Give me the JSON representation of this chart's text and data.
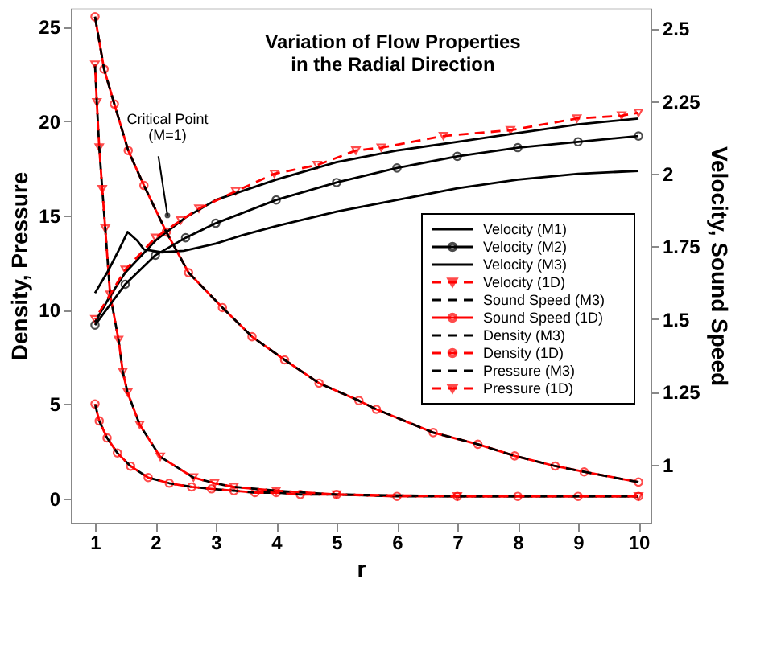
{
  "chart_data": {
    "type": "line",
    "title": "Variation of Flow Properties\nin the Radial Direction",
    "xlabel": "r",
    "ylabel": "Density, Pressure",
    "y2label": "Velocity, Sound Speed",
    "xlim": [
      0.6,
      10.2
    ],
    "xticks": [
      1,
      2,
      3,
      4,
      5,
      6,
      7,
      8,
      9,
      10
    ],
    "ylim": [
      -1.3,
      26
    ],
    "yticks": [
      0,
      5,
      10,
      15,
      20,
      25
    ],
    "y2lim": [
      0.8,
      2.57
    ],
    "y2ticks": [
      1,
      1.25,
      1.5,
      1.75,
      2,
      2.25,
      2.5
    ],
    "grid": false,
    "legend": "right",
    "annotations": [
      {
        "text": "Critical Point\n(M=1)",
        "x": 2.2,
        "y": 15
      }
    ],
    "series": [
      {
        "name": "Velocity (M1)",
        "color": "#000000",
        "axis": "y2",
        "line_style": "solid",
        "marker": "none",
        "x": [
          1,
          1.2,
          1.4,
          1.54,
          1.7,
          1.81,
          2.1,
          2.47,
          3,
          3.46,
          4,
          5,
          6,
          7,
          8,
          9,
          10
        ],
        "values": [
          1.59,
          1.66,
          1.74,
          1.8,
          1.77,
          1.74,
          1.73,
          1.735,
          1.76,
          1.79,
          1.82,
          1.87,
          1.91,
          1.95,
          1.98,
          2.0,
          2.01
        ]
      },
      {
        "name": "Velocity (M2)",
        "color": "#000000",
        "axis": "y2",
        "line_style": "solid",
        "marker": "circle",
        "x": [
          1,
          1.5,
          2,
          2.5,
          3,
          4,
          5,
          6,
          7,
          8,
          9,
          10
        ],
        "values": [
          1.48,
          1.62,
          1.72,
          1.78,
          1.83,
          1.91,
          1.97,
          2.02,
          2.06,
          2.09,
          2.11,
          2.13
        ]
      },
      {
        "name": "Velocity (M3)",
        "color": "#000000",
        "axis": "y2",
        "line_style": "solid",
        "marker": "none",
        "x": [
          1,
          1.25,
          1.5,
          2,
          2.5,
          3,
          4,
          5,
          6,
          7,
          8,
          9,
          10
        ],
        "values": [
          1.49,
          1.58,
          1.66,
          1.77,
          1.85,
          1.91,
          1.98,
          2.04,
          2.08,
          2.11,
          2.14,
          2.17,
          2.19
        ]
      },
      {
        "name": "Velocity (1D)",
        "color": "#ff0000",
        "axis": "y2",
        "line_style": "dashed",
        "marker": "triangle",
        "x": [
          1,
          1.5,
          2,
          2.42,
          2.72,
          3.33,
          3.97,
          4.68,
          5.32,
          5.74,
          6.77,
          7.88,
          8.98,
          9.72,
          10
        ],
        "values": [
          1.5,
          1.67,
          1.78,
          1.84,
          1.88,
          1.94,
          2.0,
          2.03,
          2.08,
          2.09,
          2.13,
          2.15,
          2.19,
          2.2,
          2.21
        ]
      },
      {
        "name": "Sound Speed (M3)",
        "color": "#000000",
        "axis": "y2",
        "line_style": "dashed",
        "marker": "none",
        "x": [
          1,
          1.15,
          1.32,
          1.55,
          1.81,
          2.18,
          2.55,
          3.11,
          3.6,
          4.14,
          4.71,
          5.37,
          5.66,
          6.6,
          7.34,
          7.95,
          8.62,
          9.1,
          10
        ],
        "values": [
          2.54,
          2.36,
          2.24,
          2.08,
          1.96,
          1.8,
          1.66,
          1.54,
          1.44,
          1.36,
          1.28,
          1.22,
          1.19,
          1.11,
          1.07,
          1.03,
          0.995,
          0.975,
          0.94
        ]
      },
      {
        "name": "Sound Speed (1D)",
        "color": "#ff0000",
        "axis": "y2",
        "line_style": "solid",
        "marker": "circle",
        "x": [
          1,
          1.15,
          1.32,
          1.55,
          1.81,
          2.18,
          2.55,
          3.11,
          3.6,
          4.14,
          4.71,
          5.37,
          5.66,
          6.6,
          7.34,
          7.95,
          8.62,
          9.1,
          10
        ],
        "values": [
          2.54,
          2.36,
          2.24,
          2.08,
          1.96,
          1.8,
          1.66,
          1.54,
          1.44,
          1.36,
          1.28,
          1.22,
          1.19,
          1.11,
          1.07,
          1.03,
          0.995,
          0.975,
          0.94
        ]
      },
      {
        "name": "Density (M3)",
        "color": "#000000",
        "line_style": "dashed",
        "marker": "none",
        "x": [
          1,
          1.07,
          1.2,
          1.37,
          1.59,
          1.88,
          2.23,
          2.6,
          2.93,
          3.3,
          3.65,
          4,
          4.4,
          5,
          6,
          7,
          8,
          9,
          10
        ],
        "values": [
          5.0,
          4.1,
          3.2,
          2.4,
          1.7,
          1.1,
          0.8,
          0.6,
          0.5,
          0.4,
          0.3,
          0.3,
          0.2,
          0.2,
          0.1,
          0.1,
          0.1,
          0.1,
          0.1
        ]
      },
      {
        "name": "Density (1D)",
        "color": "#ff0000",
        "line_style": "dashed",
        "marker": "circle",
        "x": [
          1,
          1.07,
          1.2,
          1.37,
          1.59,
          1.88,
          2.23,
          2.6,
          2.93,
          3.3,
          3.65,
          4,
          4.4,
          5,
          6,
          7,
          8,
          9,
          10
        ],
        "values": [
          5.0,
          4.1,
          3.2,
          2.4,
          1.7,
          1.1,
          0.8,
          0.6,
          0.5,
          0.4,
          0.3,
          0.3,
          0.2,
          0.2,
          0.1,
          0.1,
          0.1,
          0.1,
          0.1
        ]
      },
      {
        "name": "Pressure (M3)",
        "color": "#000000",
        "line_style": "dashed",
        "marker": "none",
        "x": [
          1,
          1.03,
          1.07,
          1.12,
          1.17,
          1.25,
          1.39,
          1.46,
          1.54,
          1.74,
          2.08,
          2.63,
          2.98,
          3.3,
          4,
          5,
          7,
          10
        ],
        "values": [
          23.0,
          21,
          18.6,
          16.4,
          14.3,
          10.8,
          8.4,
          6.7,
          5.6,
          3.9,
          2.2,
          1.1,
          0.8,
          0.6,
          0.4,
          0.2,
          0.1,
          0.1
        ]
      },
      {
        "name": "Pressure (1D)",
        "color": "#ff0000",
        "line_style": "dashed",
        "marker": "triangle",
        "x": [
          1,
          1.03,
          1.07,
          1.12,
          1.17,
          1.25,
          1.39,
          1.46,
          1.54,
          1.74,
          2.08,
          2.63,
          2.98,
          3.3,
          4,
          5,
          7,
          10
        ],
        "values": [
          23.0,
          21,
          18.6,
          16.4,
          14.3,
          10.8,
          8.4,
          6.7,
          5.6,
          3.9,
          2.2,
          1.1,
          0.8,
          0.6,
          0.4,
          0.2,
          0.1,
          0.1
        ]
      }
    ]
  }
}
